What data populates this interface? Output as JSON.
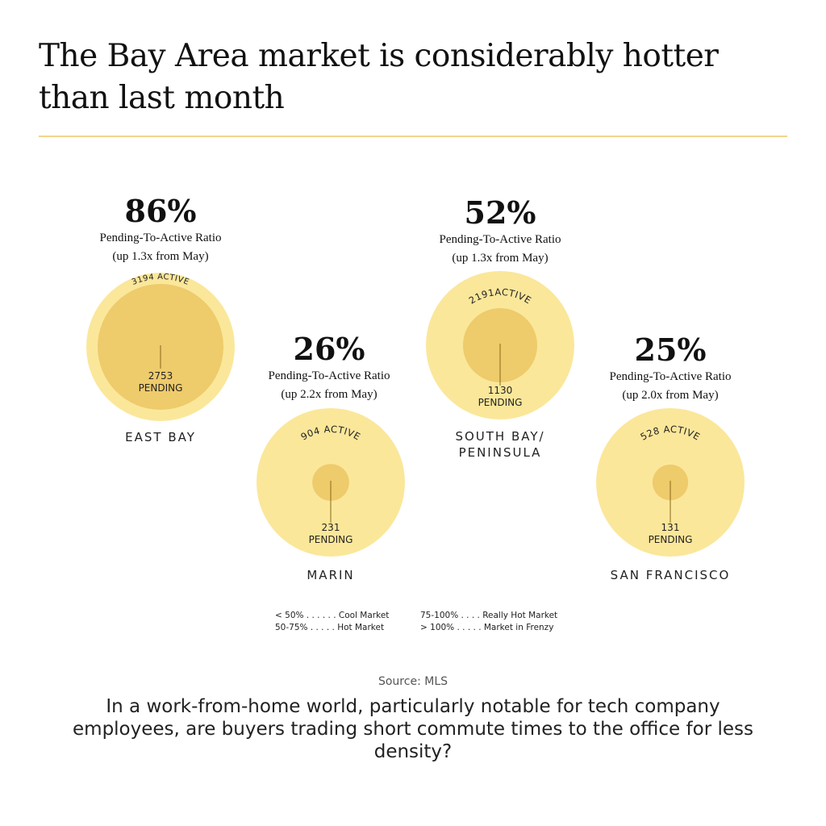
{
  "title": "The Bay Area market is considerably hotter than last month",
  "colors": {
    "active": "#fbe79a",
    "pending": "#eecb6b",
    "rule": "#f3d58a",
    "line": "#8a6a1a"
  },
  "chart_data": {
    "type": "bubble",
    "series": [
      {
        "region": "EAST BAY",
        "ratio": "86%",
        "ratio_label": "Pending-To-Active Ratio",
        "change": "(up 1.3x from May)",
        "active": 3194,
        "active_label": "3194 ACTIVE",
        "pending": 2753,
        "pending_value": "2753",
        "pending_label": "PENDING"
      },
      {
        "region": "MARIN",
        "ratio": "26%",
        "ratio_label": "Pending-To-Active Ratio",
        "change": "(up 2.2x from May)",
        "active": 904,
        "active_label": "904 ACTIVE",
        "pending": 231,
        "pending_value": "231",
        "pending_label": "PENDING"
      },
      {
        "region": "SOUTH BAY/ PENINSULA",
        "ratio": "52%",
        "ratio_label": "Pending-To-Active Ratio",
        "change": "(up 1.3x from May)",
        "active": 2191,
        "active_label": "2191ACTIVE",
        "pending": 1130,
        "pending_value": "1130",
        "pending_label": "PENDING"
      },
      {
        "region": "SAN FRANCISCO",
        "ratio": "25%",
        "ratio_label": "Pending-To-Active Ratio",
        "change": "(up 2.0x from May)",
        "active": 528,
        "active_label": "528 ACTIVE",
        "pending": 131,
        "pending_value": "131",
        "pending_label": "PENDING"
      }
    ]
  },
  "legend": [
    "< 50% . . . . . . Cool Market",
    "50-75% . . . . . Hot Market",
    "75-100% . . . . Really Hot Market",
    "> 100% . . . . . Market in Frenzy"
  ],
  "source": "Source: MLS",
  "caption": "In a work-from-home world, particularly notable for tech company employees, are buyers trading short commute times to the office for less density?"
}
